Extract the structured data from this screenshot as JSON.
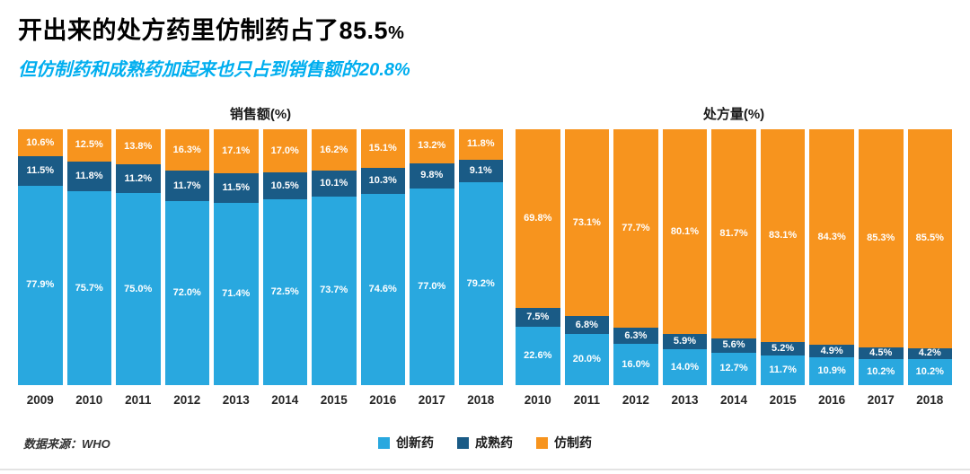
{
  "header": {
    "title_main": "开出来的处方药里仿制药占了85.5",
    "title_suffix": "%",
    "subtitle": "但仿制药和成熟药加起来也只占到销售额的20.8%"
  },
  "colors": {
    "innovative": "#29a8df",
    "mature": "#1a5b86",
    "generic": "#f7941e",
    "subtitle_accent": "#00aeef"
  },
  "legend": [
    {
      "label": "创新药",
      "color": "#29a8df"
    },
    {
      "label": "成熟药",
      "color": "#1a5b86"
    },
    {
      "label": "仿制药",
      "color": "#f7941e"
    }
  ],
  "footer": {
    "source": "数据来源：WHO"
  },
  "chart_data": [
    {
      "type": "bar",
      "stacked": true,
      "title": "销售额(%)",
      "categories": [
        "2009",
        "2010",
        "2011",
        "2012",
        "2013",
        "2014",
        "2015",
        "2016",
        "2017",
        "2018"
      ],
      "series": [
        {
          "name": "创新药",
          "color": "#29a8df",
          "values": [
            77.9,
            75.7,
            75.0,
            72.0,
            71.4,
            72.5,
            73.7,
            74.6,
            77.0,
            79.2
          ]
        },
        {
          "name": "成熟药",
          "color": "#1a5b86",
          "values": [
            11.5,
            11.8,
            11.2,
            11.7,
            11.5,
            10.5,
            10.1,
            10.3,
            9.8,
            9.1
          ]
        },
        {
          "name": "仿制药",
          "color": "#f7941e",
          "values": [
            10.6,
            12.5,
            13.8,
            16.3,
            17.1,
            17.0,
            16.2,
            15.1,
            13.2,
            11.8
          ]
        }
      ],
      "xlabel": "",
      "ylabel": "",
      "ylim": [
        0,
        100
      ],
      "grid": false,
      "legend_position": "bottom"
    },
    {
      "type": "bar",
      "stacked": true,
      "title": "处方量(%)",
      "categories": [
        "2010",
        "2011",
        "2012",
        "2013",
        "2014",
        "2015",
        "2016",
        "2017",
        "2018"
      ],
      "series": [
        {
          "name": "创新药",
          "color": "#29a8df",
          "values": [
            22.6,
            20.0,
            16.0,
            14.0,
            12.7,
            11.7,
            10.9,
            10.2,
            10.2
          ]
        },
        {
          "name": "成熟药",
          "color": "#1a5b86",
          "values": [
            7.5,
            6.8,
            6.3,
            5.9,
            5.6,
            5.2,
            4.9,
            4.5,
            4.2
          ]
        },
        {
          "name": "仿制药",
          "color": "#f7941e",
          "values": [
            69.8,
            73.1,
            77.7,
            80.1,
            81.7,
            83.1,
            84.3,
            85.3,
            85.5
          ]
        }
      ],
      "xlabel": "",
      "ylabel": "",
      "ylim": [
        0,
        100
      ],
      "grid": false,
      "legend_position": "bottom"
    }
  ]
}
